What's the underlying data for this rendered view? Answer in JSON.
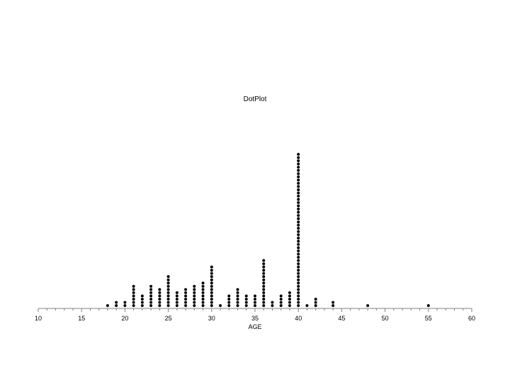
{
  "chart_data": {
    "type": "scatter",
    "subtype": "dot-plot",
    "title": "DotPlot",
    "xlabel": "AGE",
    "ylabel": "",
    "xlim": [
      10,
      60
    ],
    "major_ticks": [
      10,
      15,
      20,
      25,
      30,
      35,
      40,
      45,
      50,
      55,
      60
    ],
    "minor_tick_step": 1,
    "grid": false,
    "legend": "none",
    "marker_color": "#000000",
    "points": [
      {
        "x": 18,
        "count": 1
      },
      {
        "x": 19,
        "count": 2
      },
      {
        "x": 20,
        "count": 2
      },
      {
        "x": 21,
        "count": 7
      },
      {
        "x": 22,
        "count": 4
      },
      {
        "x": 23,
        "count": 7
      },
      {
        "x": 24,
        "count": 6
      },
      {
        "x": 25,
        "count": 10
      },
      {
        "x": 26,
        "count": 5
      },
      {
        "x": 27,
        "count": 6
      },
      {
        "x": 28,
        "count": 7
      },
      {
        "x": 29,
        "count": 8
      },
      {
        "x": 30,
        "count": 13
      },
      {
        "x": 31,
        "count": 1
      },
      {
        "x": 32,
        "count": 4
      },
      {
        "x": 33,
        "count": 6
      },
      {
        "x": 34,
        "count": 4
      },
      {
        "x": 35,
        "count": 4
      },
      {
        "x": 36,
        "count": 15
      },
      {
        "x": 37,
        "count": 2
      },
      {
        "x": 38,
        "count": 4
      },
      {
        "x": 39,
        "count": 5
      },
      {
        "x": 40,
        "count": 48
      },
      {
        "x": 41,
        "count": 1
      },
      {
        "x": 42,
        "count": 3
      },
      {
        "x": 44,
        "count": 2
      },
      {
        "x": 48,
        "count": 1
      },
      {
        "x": 55,
        "count": 1
      }
    ]
  }
}
